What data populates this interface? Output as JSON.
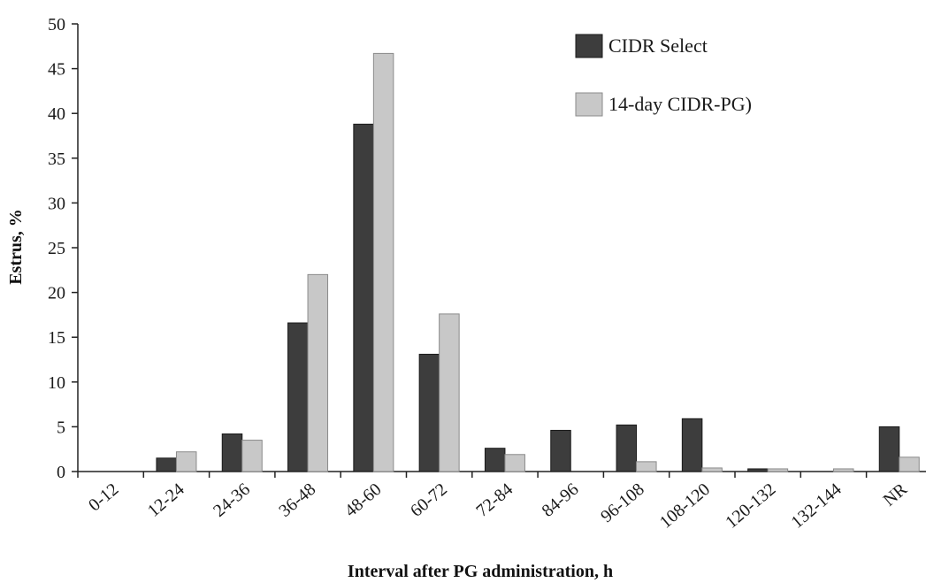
{
  "chart_data": {
    "type": "bar",
    "categories": [
      "0-12",
      "12-24",
      "24-36",
      "36-48",
      "48-60",
      "60-72",
      "72-84",
      "84-96",
      "96-108",
      "108-120",
      "120-132",
      "132-144",
      "NR"
    ],
    "series": [
      {
        "name": "CIDR Select",
        "values": [
          0,
          1.5,
          4.2,
          16.6,
          38.8,
          13.1,
          2.6,
          4.6,
          5.2,
          5.9,
          0.3,
          0,
          5.0
        ],
        "color": "#3d3d3d"
      },
      {
        "name": "14-day CIDR-PG)",
        "values": [
          0,
          2.2,
          3.5,
          22.0,
          46.7,
          17.6,
          1.9,
          0,
          1.1,
          0.4,
          0.3,
          0.3,
          1.6
        ],
        "color": "#c8c8c8"
      }
    ],
    "yticks": [
      0,
      5,
      10,
      15,
      20,
      25,
      30,
      35,
      40,
      45,
      50
    ],
    "ylim": [
      0,
      50
    ],
    "xlabel": "Interval after PG administration, h",
    "ylabel": "Estrus, %",
    "legend_position": "top-right",
    "grid": false
  }
}
